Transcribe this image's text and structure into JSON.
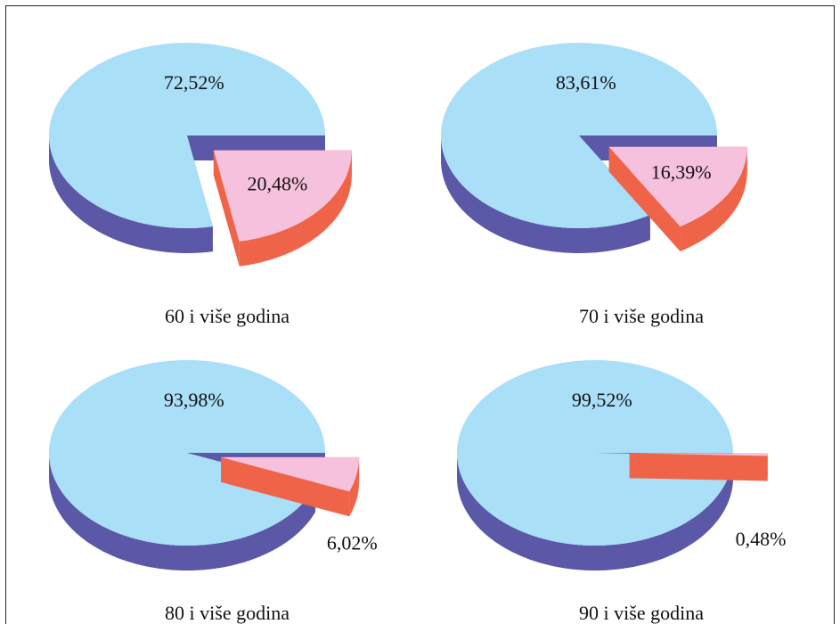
{
  "chart_data": [
    {
      "type": "pie",
      "title": "60 i više godina",
      "values": [
        72.52,
        20.48
      ],
      "value_labels": [
        "72,52%",
        "20,48%"
      ],
      "colors": [
        "#aadff8",
        "#f6c1dc"
      ],
      "depth_colors": [
        "#5b58a8",
        "#ef6448"
      ]
    },
    {
      "type": "pie",
      "title": "70 i više godina",
      "values": [
        83.61,
        16.39
      ],
      "value_labels": [
        "83,61%",
        "16,39%"
      ],
      "colors": [
        "#aadff8",
        "#f6c1dc"
      ],
      "depth_colors": [
        "#5b58a8",
        "#ef6448"
      ]
    },
    {
      "type": "pie",
      "title": "80 i više godina",
      "values": [
        93.98,
        6.02
      ],
      "value_labels": [
        "93,98%",
        "6,02%"
      ],
      "colors": [
        "#aadff8",
        "#f6c1dc"
      ],
      "depth_colors": [
        "#5b58a8",
        "#ef6448"
      ]
    },
    {
      "type": "pie",
      "title": "90 i više godina",
      "values": [
        99.52,
        0.48
      ],
      "value_labels": [
        "99,52%",
        "0,48%"
      ],
      "colors": [
        "#aadff8",
        "#f6c1dc"
      ],
      "depth_colors": [
        "#5b58a8",
        "#ef6448"
      ]
    }
  ]
}
